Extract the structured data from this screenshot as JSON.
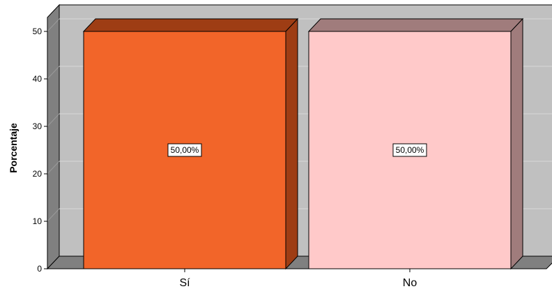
{
  "chart_data": {
    "type": "bar",
    "style": "3d",
    "categories": [
      "Sí",
      "No"
    ],
    "values": [
      50,
      50
    ],
    "data_labels": [
      "50,00%",
      "50,00%"
    ],
    "ylabel": "Porcentaje",
    "xlabel": "",
    "ylim": [
      0,
      50
    ],
    "yticks": [
      0,
      10,
      20,
      30,
      40,
      50
    ],
    "grid": true,
    "legend": "none",
    "colors": {
      "bars": [
        "#f26529",
        "#ffc9c9"
      ],
      "bar_tops": [
        "#9e3d14",
        "#a07c7c"
      ],
      "bar_sides": [
        "#9e3d14",
        "#a07c7c"
      ],
      "back_wall": "#c0c0c0",
      "side_wall": "#808080",
      "floor": "#808080",
      "gridline": "#d8d8d8"
    }
  }
}
